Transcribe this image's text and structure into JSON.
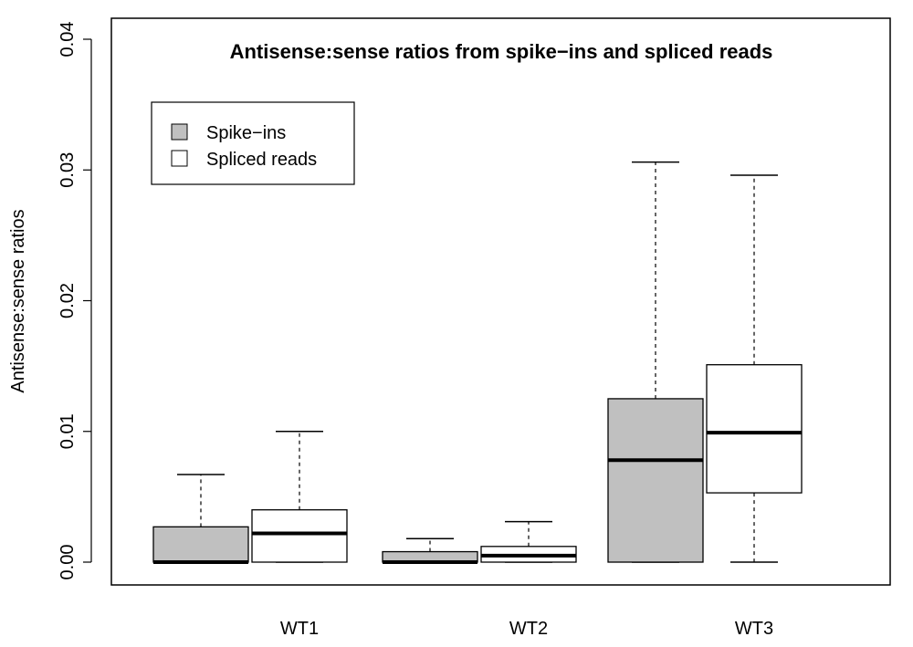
{
  "chart_data": {
    "type": "boxplot",
    "title": "Antisense:sense ratios from spike−ins and spliced reads",
    "ylabel": "Antisense:sense ratios",
    "xlabel": "",
    "ylim": [
      0,
      0.04
    ],
    "yticks": [
      "0.00",
      "0.01",
      "0.02",
      "0.03",
      "0.04"
    ],
    "ytick_values": [
      0,
      0.01,
      0.02,
      0.03,
      0.04
    ],
    "categories": [
      "WT1",
      "WT2",
      "WT3"
    ],
    "legend_position": "top-left",
    "series": [
      {
        "name": "Spike−ins",
        "color": "#c0c0c0",
        "boxes": [
          {
            "whisker_low": 0.0,
            "q1": 0.0,
            "median": 0.0,
            "q3": 0.0027,
            "whisker_high": 0.0067
          },
          {
            "whisker_low": 0.0,
            "q1": 0.0,
            "median": 0.0,
            "q3": 0.0008,
            "whisker_high": 0.0018
          },
          {
            "whisker_low": 0.0,
            "q1": 0.0,
            "median": 0.0078,
            "q3": 0.0125,
            "whisker_high": 0.0306
          }
        ]
      },
      {
        "name": "Spliced reads",
        "color": "#ffffff",
        "boxes": [
          {
            "whisker_low": 0.0,
            "q1": 0.0,
            "median": 0.0022,
            "q3": 0.004,
            "whisker_high": 0.01
          },
          {
            "whisker_low": 0.0,
            "q1": 0.0,
            "median": 0.0005,
            "q3": 0.0012,
            "whisker_high": 0.0031
          },
          {
            "whisker_low": 0.0,
            "q1": 0.0053,
            "median": 0.0099,
            "q3": 0.0151,
            "whisker_high": 0.0296
          }
        ]
      }
    ]
  }
}
